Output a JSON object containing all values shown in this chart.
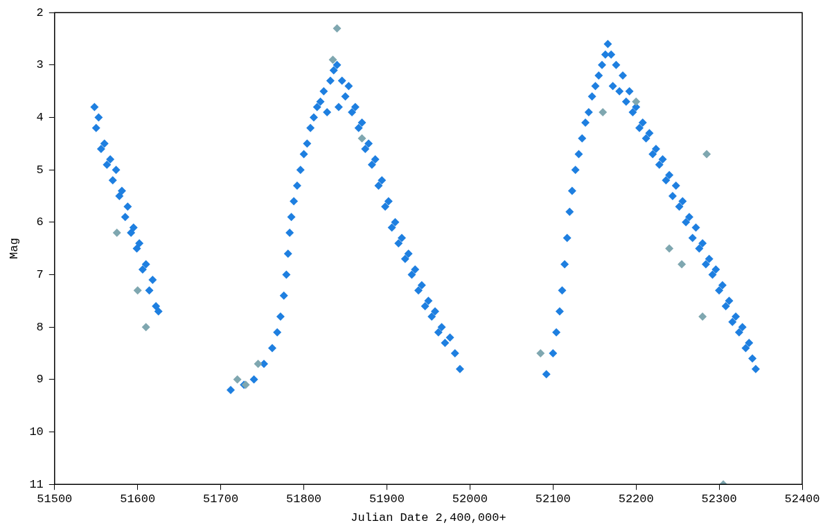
{
  "chart_data": {
    "type": "scatter",
    "xlabel": "Julian Date 2,400,000+",
    "ylabel": "Mag",
    "marker": "diamond",
    "xlim": [
      51500,
      52400
    ],
    "xticks": [
      51500,
      51600,
      51700,
      51800,
      51900,
      52000,
      52100,
      52200,
      52300,
      52400
    ],
    "ylim": [
      11,
      2
    ],
    "yticks": [
      2,
      3,
      4,
      5,
      6,
      7,
      8,
      9,
      10,
      11
    ],
    "series": [
      {
        "color": "#7fa7b0",
        "x": [
          51610,
          51600,
          51575,
          51720,
          51730,
          51745,
          51835,
          51840,
          51870,
          52085,
          52160,
          52200,
          52240,
          52255,
          52280,
          52285,
          52305
        ],
        "values": [
          8.0,
          7.3,
          6.2,
          9.0,
          9.1,
          8.7,
          2.9,
          2.3,
          4.4,
          8.5,
          3.9,
          3.7,
          6.5,
          6.8,
          7.8,
          4.7,
          11.0
        ]
      },
      {
        "color": "#1e7fe0",
        "x": [
          51548,
          51550,
          51553,
          51556,
          51560,
          51563,
          51567,
          51570,
          51574,
          51578,
          51581,
          51585,
          51588,
          51592,
          51595,
          51599,
          51602,
          51606,
          51610,
          51614,
          51618,
          51622,
          51625,
          51712,
          51728,
          51740,
          51752,
          51762,
          51768,
          51772,
          51776,
          51779,
          51781,
          51783,
          51785,
          51788,
          51792,
          51796,
          51800,
          51804,
          51808,
          51812,
          51816,
          51820,
          51824,
          51828,
          51832,
          51836,
          51840,
          51842,
          51846,
          51850,
          51854,
          51858,
          51862,
          51866,
          51870,
          51874,
          51878,
          51882,
          51886,
          51890,
          51894,
          51898,
          51902,
          51906,
          51910,
          51914,
          51918,
          51922,
          51926,
          51930,
          51934,
          51938,
          51942,
          51946,
          51950,
          51954,
          51958,
          51962,
          51966,
          51970,
          51976,
          51982,
          51988,
          52092,
          52100,
          52104,
          52108,
          52111,
          52114,
          52117,
          52120,
          52123,
          52127,
          52131,
          52135,
          52139,
          52143,
          52147,
          52151,
          52155,
          52159,
          52163,
          52166,
          52170,
          52172,
          52176,
          52180,
          52184,
          52188,
          52192,
          52196,
          52200,
          52204,
          52208,
          52212,
          52216,
          52220,
          52224,
          52228,
          52232,
          52236,
          52240,
          52244,
          52248,
          52252,
          52256,
          52260,
          52264,
          52268,
          52272,
          52276,
          52280,
          52284,
          52288,
          52292,
          52296,
          52300,
          52304,
          52308,
          52312,
          52316,
          52320,
          52324,
          52328,
          52332,
          52336,
          52340,
          52344
        ],
        "values": [
          3.8,
          4.2,
          4.0,
          4.6,
          4.5,
          4.9,
          4.8,
          5.2,
          5.0,
          5.5,
          5.4,
          5.9,
          5.7,
          6.2,
          6.1,
          6.5,
          6.4,
          6.9,
          6.8,
          7.3,
          7.1,
          7.6,
          7.7,
          9.2,
          9.1,
          9.0,
          8.7,
          8.4,
          8.1,
          7.8,
          7.4,
          7.0,
          6.6,
          6.2,
          5.9,
          5.6,
          5.3,
          5.0,
          4.7,
          4.5,
          4.2,
          4.0,
          3.8,
          3.7,
          3.5,
          3.9,
          3.3,
          3.1,
          3.0,
          3.8,
          3.3,
          3.6,
          3.4,
          3.9,
          3.8,
          4.2,
          4.1,
          4.6,
          4.5,
          4.9,
          4.8,
          5.3,
          5.2,
          5.7,
          5.6,
          6.1,
          6.0,
          6.4,
          6.3,
          6.7,
          6.6,
          7.0,
          6.9,
          7.3,
          7.2,
          7.6,
          7.5,
          7.8,
          7.7,
          8.1,
          8.0,
          8.3,
          8.2,
          8.5,
          8.8,
          8.9,
          8.5,
          8.1,
          7.7,
          7.3,
          6.8,
          6.3,
          5.8,
          5.4,
          5.0,
          4.7,
          4.4,
          4.1,
          3.9,
          3.6,
          3.4,
          3.2,
          3.0,
          2.8,
          2.6,
          2.8,
          3.4,
          3.0,
          3.5,
          3.2,
          3.7,
          3.5,
          3.9,
          3.8,
          4.2,
          4.1,
          4.4,
          4.3,
          4.7,
          4.6,
          4.9,
          4.8,
          5.2,
          5.1,
          5.5,
          5.3,
          5.7,
          5.6,
          6.0,
          5.9,
          6.3,
          6.1,
          6.5,
          6.4,
          6.8,
          6.7,
          7.0,
          6.9,
          7.3,
          7.2,
          7.6,
          7.5,
          7.9,
          7.8,
          8.1,
          8.0,
          8.4,
          8.3,
          8.6,
          8.8
        ]
      }
    ]
  }
}
